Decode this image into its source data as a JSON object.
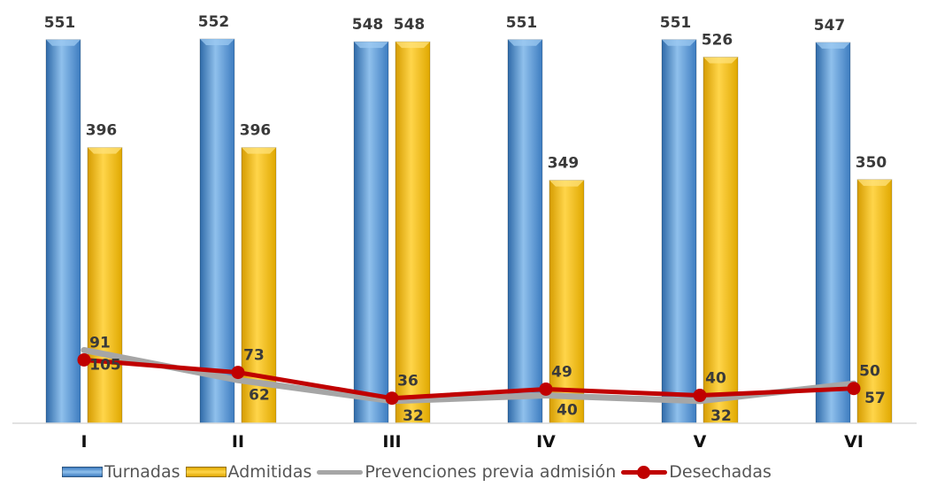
{
  "chart_data": {
    "type": "bar",
    "categories": [
      "I",
      "II",
      "III",
      "IV",
      "V",
      "VI"
    ],
    "ylim": [
      0,
      560
    ],
    "grid": false,
    "legend_position": "bottom",
    "series": [
      {
        "name": "Turnadas",
        "kind": "bar",
        "color": "#5b9bd5",
        "values": [
          551,
          552,
          548,
          551,
          551,
          547
        ]
      },
      {
        "name": "Admitidas",
        "kind": "bar",
        "color": "#ffc000",
        "values": [
          396,
          396,
          548,
          349,
          526,
          350
        ]
      },
      {
        "name": "Prevenciones previa admisión",
        "kind": "line",
        "color": "#a6a6a6",
        "values": [
          105,
          62,
          32,
          40,
          32,
          57
        ]
      },
      {
        "name": "Desechadas",
        "kind": "line",
        "color": "#c00000",
        "values": [
          91,
          73,
          36,
          49,
          40,
          50
        ]
      }
    ]
  }
}
